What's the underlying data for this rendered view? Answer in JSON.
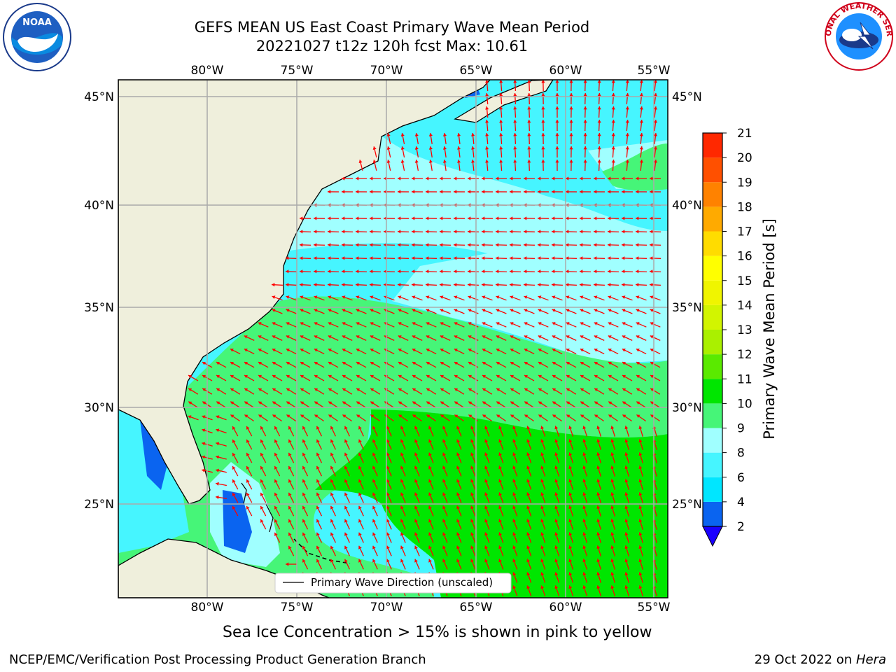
{
  "title_line1": "GEFS MEAN US East Coast Primary Wave Mean Period",
  "title_line2": "20221027 t12z 120h fcst   Max: 10.61",
  "logos": {
    "left": "NOAA",
    "right": "NATIONAL WEATHER SERVICE"
  },
  "map": {
    "lon_labels": [
      "80°W",
      "75°W",
      "70°W",
      "65°W",
      "60°W",
      "55°W"
    ],
    "lat_labels": [
      "45°N",
      "40°N",
      "35°N",
      "30°N",
      "25°N"
    ],
    "legend_label": "Primary Wave Direction (unscaled)"
  },
  "colorbar": {
    "label": "Primary Wave Mean Period [s]",
    "ticks": [
      "2",
      "4",
      "6",
      "8",
      "9",
      "10",
      "11",
      "12",
      "13",
      "14",
      "15",
      "16",
      "17",
      "18",
      "19",
      "20",
      "21"
    ],
    "colors": [
      "#0a64f0",
      "#00e6ff",
      "#46f5ff",
      "#a0ffff",
      "#46f578",
      "#00e600",
      "#5aea00",
      "#aaf000",
      "#d2f500",
      "#f0f500",
      "#ffff00",
      "#ffdc00",
      "#ffaa00",
      "#ff8200",
      "#ff5000",
      "#ff2800",
      "#ff0000"
    ],
    "extend_color": "#1a00ff"
  },
  "subnote": "Sea Ice Concentration > 15% is shown in pink to yellow",
  "credit": "NCEP/EMC/Verification Post Processing Product Generation Branch",
  "date_text": "29 Oct 2022 on",
  "date_machine": "Hera"
}
